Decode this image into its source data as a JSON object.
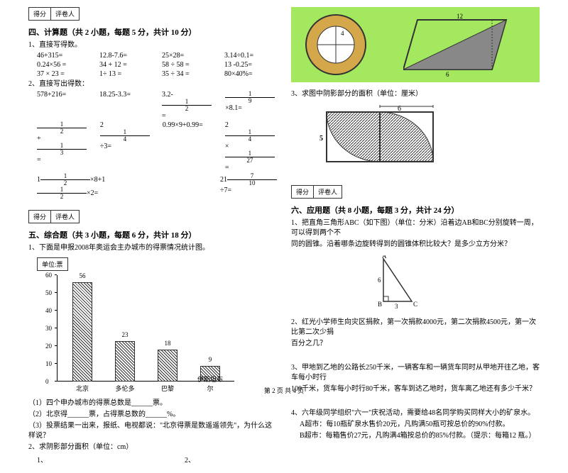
{
  "scorebox": {
    "score": "得分",
    "grader": "评卷人"
  },
  "section4": {
    "title": "四、计算题（共 2 小题，每题 5 分，共计 10 分）",
    "q1": "1、直接写得数。",
    "row1": [
      "46+315=",
      "12.8-7.6=",
      "25×28=",
      "3.14÷0.1="
    ],
    "row2": [
      "0.24×56 =",
      "34 + 12 =",
      "58 ÷ 58 =",
      "13 -0.25="
    ],
    "row3": [
      "37 × 23 =",
      "1÷ 13 =",
      "35 ÷ 34 =",
      "80×40%="
    ],
    "q2": "2、直接写出得数：",
    "row4": [
      "578+216=",
      "18.25-3.3=",
      "3.2-",
      "×8.1="
    ],
    "row4_frac1": {
      "n": "1",
      "d": "2"
    },
    "row4_frac2": {
      "n": "1",
      "d": "9"
    },
    "row5_a": "+",
    "row5_b": "÷3=",
    "row5_c": "0.99×9+0.99=",
    "row5_d": "×",
    "row5_f1": {
      "n": "1",
      "d": "2"
    },
    "row5_f2": {
      "n": "1",
      "d": "3"
    },
    "row5_f3": {
      "n": "1",
      "d": "4"
    },
    "row5_f4": {
      "n": "1",
      "d": "4"
    },
    "row5_f5": {
      "n": "1",
      "d": "27"
    },
    "row6_a": "×8+1",
    "row6_b": "×2=",
    "row6_c": "÷7=",
    "row6_f1": {
      "n": "1",
      "d": "2"
    },
    "row6_f2": {
      "n": "1",
      "d": "2"
    },
    "row6_f3": {
      "n": "7",
      "d": "10"
    }
  },
  "section5": {
    "title": "五、综合题（共 3 小题，每题 6 分，共计 18 分）",
    "q1": "1、下面是申报2008年奥运会主办城市的得票情况统计图。",
    "unit": "单位:票",
    "yticks": [
      0,
      10,
      20,
      30,
      40,
      50,
      60
    ],
    "bars": [
      {
        "label": "北京",
        "value": 56,
        "x": 50
      },
      {
        "label": "多伦多",
        "value": 23,
        "x": 110
      },
      {
        "label": "巴黎",
        "value": 18,
        "x": 170
      },
      {
        "label": "伊斯坦布尔",
        "value": 9,
        "x": 230
      }
    ],
    "sub1": "（1）四个申办城市的得票总数是______票。",
    "sub2": "（2）北京得______票，占得票总数的______%。",
    "sub3": "（3）投票结果一出来，报纸、电视都说：\"北京得票是数遥遥领先\"，为什么这样说？",
    "q2": "2、求阴影部分面积（单位：cm）",
    "q2_1": "1、",
    "q2_2": "2、"
  },
  "right": {
    "circle_label": "4",
    "para_top": "12",
    "para_bottom": "6",
    "q3": "3、求图中阴影部分的面积（单位：厘米）",
    "shade_w": "6",
    "shade_h": "5"
  },
  "section6": {
    "title": "六、应用题（共 8 小题，每题 3 分，共计 24 分）",
    "q1a": "1、把直角三角形ABC（如下图）（单位：分米）沿着边AB和BC分别旋转一周，可以得到两个不",
    "q1b": "同的圆锥。沿着哪条边旋转得到的圆锥体积比较大？是多少立方分米？",
    "tri_a": "A",
    "tri_b": "B",
    "tri_c": "C",
    "tri_6": "6",
    "tri_3": "3",
    "q2a": "2、红光小学师生向灾区捐款，第一次捐款4000元，第二次捐款4500元，第一次比第二次少捐",
    "q2b": "百分之几？",
    "q3a": "3、甲地到乙地的公路长250千米，一辆客车和一辆货车同时从甲地开往乙地，客车每小时行",
    "q3b": "100千米，货车每小时行80千米，客车到达乙地时，货车离乙地还有多少千米？",
    "q4a": "4、六年级同学组织\"六一\"庆祝活动，需要给48名同学购买同样大小的矿泉水。",
    "q4b": "A超市：每10瓶矿泉水售价20元，凡购满50瓶可按总价的90%付款。",
    "q4c": "B超市：每箱售价27元，凡购满4箱按总价的85%付款。（提示：每箱12 瓶。）"
  },
  "footer": "第 2 页 共 4 页"
}
